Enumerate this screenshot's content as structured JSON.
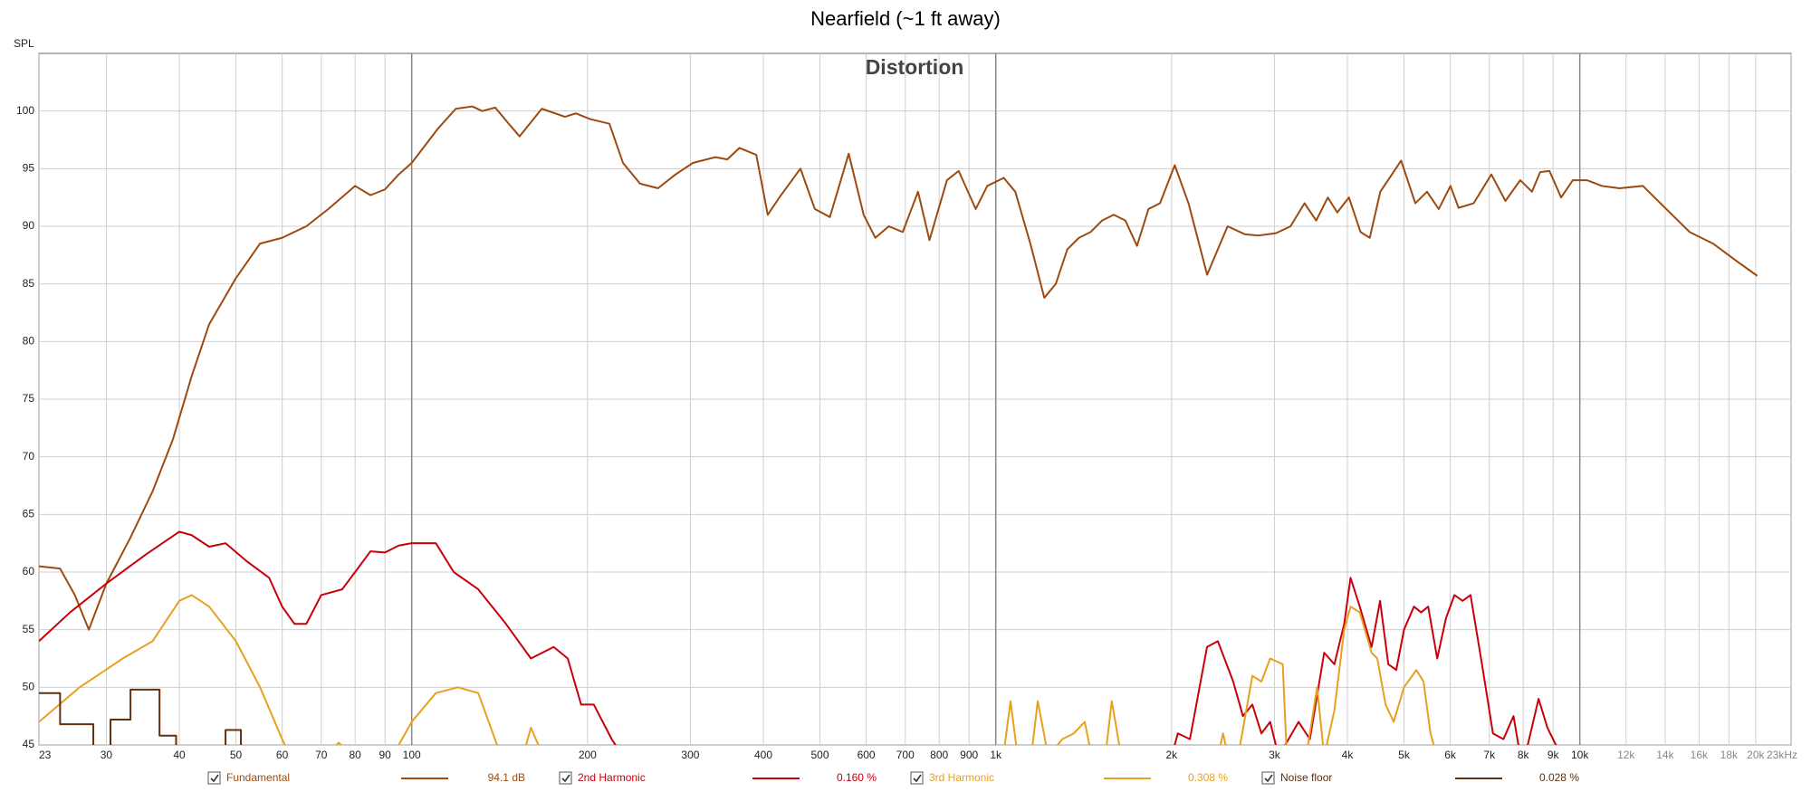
{
  "chart_data": {
    "type": "line",
    "title": "Nearfield (~1 ft away)",
    "subtitle": "Distortion",
    "ylabel": "SPL",
    "xscale": "log",
    "grid": true,
    "xlim": [
      23,
      23000
    ],
    "ylim": [
      45,
      105
    ],
    "yticks": [
      45,
      50,
      55,
      60,
      65,
      70,
      75,
      80,
      85,
      90,
      95,
      100
    ],
    "xticks": [
      23,
      30,
      40,
      50,
      60,
      70,
      80,
      90,
      100,
      200,
      300,
      400,
      500,
      600,
      700,
      800,
      900,
      {
        "value": 1000,
        "label": "1k"
      },
      {
        "value": 2000,
        "label": "2k"
      },
      {
        "value": 3000,
        "label": "3k"
      },
      {
        "value": 4000,
        "label": "4k"
      },
      {
        "value": 5000,
        "label": "5k"
      },
      {
        "value": 6000,
        "label": "6k"
      },
      {
        "value": 7000,
        "label": "7k"
      },
      {
        "value": 8000,
        "label": "8k"
      },
      {
        "value": 9000,
        "label": "9k"
      },
      {
        "value": 10000,
        "label": "10k"
      },
      {
        "value": 12000,
        "label": "12k"
      },
      {
        "value": 14000,
        "label": "14k"
      },
      {
        "value": 16000,
        "label": "16k"
      },
      {
        "value": 18000,
        "label": "18k"
      },
      {
        "value": 20000,
        "label": "20k"
      },
      {
        "value": 23000,
        "label": "23kHz"
      }
    ],
    "series": [
      {
        "name": "Fundamental",
        "legend_label": "94.1 dB",
        "color": "#9c4a10",
        "x": [
          23,
          25,
          26.5,
          28,
          30,
          33,
          36,
          39,
          42,
          45,
          50,
          55,
          60,
          66,
          72,
          80,
          85,
          90,
          95,
          100,
          111,
          119,
          127,
          132,
          139,
          146,
          153,
          167,
          183,
          191,
          202,
          218,
          230,
          246,
          264,
          283,
          303,
          331,
          347,
          364,
          389,
          407,
          426,
          463,
          490,
          520,
          560,
          594,
          622,
          656,
          693,
          736,
          770,
          825,
          864,
          924,
          967,
          1032,
          1080,
          1146,
          1211,
          1267,
          1326,
          1388,
          1453,
          1521,
          1592,
          1667,
          1745,
          1826,
          1911,
          2025,
          2138,
          2301,
          2494,
          2672,
          2816,
          3018,
          3197,
          3378,
          3537,
          3703,
          3843,
          4024,
          4213,
          4369,
          4554,
          4944,
          5228,
          5475,
          5734,
          6005,
          6201,
          6581,
          7056,
          7458,
          7906,
          8281,
          8553,
          8872,
          9290,
          9727,
          10285,
          10912,
          11698,
          12826,
          14062,
          15420,
          16906,
          18535,
          20128
        ],
        "values": [
          60.5,
          60.3,
          58,
          55,
          59,
          63,
          67,
          71.5,
          77,
          81.5,
          85.5,
          88.5,
          89,
          90,
          91.5,
          93.5,
          92.7,
          93.2,
          94.5,
          95.5,
          98.5,
          100.2,
          100.4,
          100,
          100.3,
          99,
          97.8,
          100.2,
          99.5,
          99.8,
          99.3,
          98.9,
          95.5,
          93.7,
          93.3,
          94.5,
          95.5,
          96,
          95.8,
          96.8,
          96.2,
          91,
          92.5,
          95,
          91.5,
          90.8,
          96.3,
          91,
          89,
          90,
          89.5,
          93,
          88.8,
          94,
          94.8,
          91.5,
          93.5,
          94.2,
          93,
          88.5,
          83.8,
          85,
          88,
          89,
          89.5,
          90.5,
          91,
          90.5,
          88.3,
          91.5,
          92,
          95.3,
          92,
          85.8,
          90,
          89.3,
          89.2,
          89.4,
          90,
          92,
          90.5,
          92.5,
          91.2,
          92.5,
          89.5,
          89,
          93,
          95.7,
          92,
          93,
          91.5,
          93.5,
          91.6,
          92,
          94.5,
          92.2,
          94,
          93,
          94.7,
          94.8,
          92.5,
          94,
          94,
          93.5,
          93.3,
          93.5,
          91.5,
          89.5,
          88.5,
          87,
          85.7
        ]
      },
      {
        "name": "2nd Harmonic",
        "legend_label": "0.160 %",
        "color": "#c8000a",
        "x": [
          23,
          26,
          30,
          35,
          40,
          42,
          45,
          48,
          52,
          57,
          60,
          63,
          66,
          70,
          76,
          80,
          85,
          90,
          95,
          100,
          110,
          118,
          130,
          145,
          160,
          175,
          185,
          195,
          205,
          220,
          230,
          null,
          2000,
          2050,
          2150,
          2300,
          2400,
          2550,
          2650,
          2750,
          2850,
          2950,
          3050,
          3300,
          3450,
          3650,
          3800,
          3950,
          4050,
          4200,
          4400,
          4550,
          4700,
          4850,
          5000,
          5200,
          5350,
          5500,
          5700,
          5900,
          6100,
          6300,
          6500,
          6800,
          7100,
          7400,
          7700,
          7850,
          8100,
          8500,
          8800,
          9100,
          9400
        ],
        "values": [
          54,
          56.5,
          59,
          61.5,
          63.5,
          63.2,
          62.2,
          62.5,
          61,
          59.5,
          57,
          55.5,
          55.5,
          58,
          58.5,
          60,
          61.8,
          61.7,
          62.3,
          62.5,
          62.5,
          60,
          58.5,
          55.5,
          52.5,
          53.5,
          52.5,
          48.5,
          48.5,
          45.5,
          44,
          null,
          44,
          46,
          45.5,
          53.5,
          54,
          50.5,
          47.5,
          48.5,
          46,
          47,
          44,
          47,
          45.5,
          53,
          52,
          55.5,
          59.5,
          57,
          53.5,
          57.5,
          52,
          51.5,
          55,
          57,
          56.5,
          57,
          52.5,
          56,
          58,
          57.5,
          58,
          52,
          46,
          45.5,
          47.5,
          45,
          44.5,
          49,
          46.5,
          45,
          44
        ]
      },
      {
        "name": "3rd Harmonic",
        "legend_label": "0.308 %",
        "color": "#e8a020",
        "x": [
          23,
          27,
          32,
          36,
          40,
          42,
          45,
          50,
          55,
          60,
          62,
          null,
          71,
          75,
          79,
          null,
          95,
          100,
          110,
          120,
          130,
          140,
          145,
          null,
          155,
          160,
          168,
          null,
          1030,
          1060,
          1090,
          null,
          1150,
          1180,
          1230,
          1300,
          1360,
          1420,
          1460,
          null,
          1540,
          1580,
          1640,
          null,
          2400,
          2450,
          2500,
          null,
          2600,
          2750,
          2850,
          2950,
          3100,
          3150,
          null,
          3400,
          3550,
          3650,
          3800,
          3950,
          4050,
          4200,
          4400,
          4500,
          4650,
          4800,
          5000,
          5250,
          5400,
          5550,
          5700
        ],
        "values": [
          47,
          50,
          52.5,
          54,
          57.5,
          58,
          57,
          54,
          50,
          45.5,
          44,
          null,
          44,
          45.2,
          44,
          null,
          45,
          47,
          49.5,
          50,
          49.5,
          45,
          44,
          null,
          44,
          46.5,
          44,
          null,
          44,
          48.8,
          44,
          null,
          44,
          48.8,
          44,
          45.5,
          46,
          47,
          44,
          null,
          44,
          48.8,
          44,
          null,
          44,
          46,
          44,
          null,
          44,
          51,
          50.5,
          52.5,
          52,
          44,
          null,
          44,
          50,
          44,
          48,
          55,
          57,
          56.5,
          53,
          52.5,
          48.5,
          47,
          50,
          51.5,
          50.5,
          46,
          44
        ]
      },
      {
        "name": "Noise floor",
        "legend_label": "0.028 %",
        "color": "#5e3010",
        "x": [
          23,
          25,
          25,
          28.5,
          28.5,
          null,
          30.5,
          30.5,
          33,
          33,
          37,
          37,
          39.5,
          39.5,
          null,
          48,
          48,
          51,
          51
        ],
        "values": [
          49.5,
          49.5,
          46.8,
          46.8,
          44,
          null,
          44,
          47.2,
          47.2,
          49.8,
          49.8,
          45.8,
          45.8,
          44,
          null,
          44,
          46.3,
          46.3,
          44
        ]
      }
    ]
  }
}
